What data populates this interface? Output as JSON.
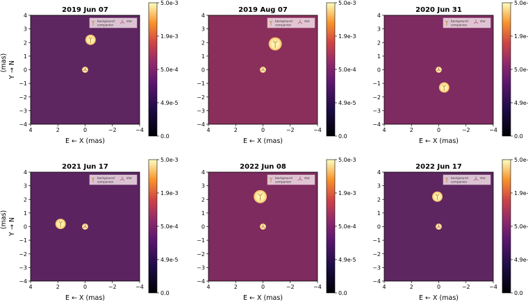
{
  "chart_data": [
    {
      "type": "heatmap",
      "title": "2019 Jun 07",
      "xlabel": "E ← X (mas)",
      "ylabel": "Y → N",
      "ylabel_unit": "(mas)",
      "xlim": [
        4,
        -4
      ],
      "ylim": [
        -4,
        4
      ],
      "x_ticks": [
        "4",
        "2",
        "0",
        "−2",
        "−4"
      ],
      "y_ticks": [
        "4",
        "3",
        "2",
        "1",
        "0",
        "−1",
        "−2",
        "−3",
        "−4"
      ],
      "background_color": "#5e2660",
      "legend": [
        "background companion",
        "star"
      ],
      "legend_position": "top-right",
      "colorbar": {
        "labels": [
          "5.0e-3",
          "1.9e-3",
          "5.0e-4",
          "4.9e-5",
          "0.0"
        ]
      },
      "sources": [
        {
          "x": 0.0,
          "y": 0.0,
          "size": "small"
        },
        {
          "x": -0.4,
          "y": 2.2,
          "size": "medium"
        }
      ]
    },
    {
      "type": "heatmap",
      "title": "2019 Aug 07",
      "xlabel": "E ← X (mas)",
      "ylabel": "",
      "ylabel_unit": "",
      "xlim": [
        4,
        -4
      ],
      "ylim": [
        -4,
        4
      ],
      "x_ticks": [
        "4",
        "2",
        "0",
        "−2",
        "−4"
      ],
      "y_ticks": [
        "4",
        "3",
        "2",
        "1",
        "0",
        "−1",
        "−2",
        "−3",
        "−4"
      ],
      "background_color": "#8a2f5c",
      "legend": [
        "background companion",
        "star"
      ],
      "legend_position": "top-right",
      "colorbar": {
        "labels": [
          "5.0e-3",
          "1.9e-3",
          "5.0e-4",
          "4.9e-5",
          "0.0"
        ]
      },
      "sources": [
        {
          "x": 0.0,
          "y": 0.0,
          "size": "small"
        },
        {
          "x": -0.9,
          "y": 1.9,
          "size": "large"
        }
      ]
    },
    {
      "type": "heatmap",
      "title": "2020 Jun 31",
      "xlabel": "E ← X (mas)",
      "ylabel": "",
      "ylabel_unit": "",
      "xlim": [
        4,
        -4
      ],
      "ylim": [
        -4,
        4
      ],
      "x_ticks": [
        "4",
        "2",
        "0",
        "−2",
        "−4"
      ],
      "y_ticks": [
        "4",
        "3",
        "2",
        "1",
        "0",
        "−1",
        "−2",
        "−3",
        "−4"
      ],
      "background_color": "#7d2b60",
      "legend": [
        "background companion",
        "star"
      ],
      "legend_position": "top-right",
      "colorbar": {
        "labels": [
          "5.0e-3",
          "1.9e-3",
          "5.0e-4",
          "4.9e-5",
          "0.0"
        ]
      },
      "sources": [
        {
          "x": 0.0,
          "y": 0.0,
          "size": "small"
        },
        {
          "x": -0.4,
          "y": -1.3,
          "size": "medium"
        }
      ]
    },
    {
      "type": "heatmap",
      "title": "2021 Jun 17",
      "xlabel": "E ← X (mas)",
      "ylabel": "Y → N",
      "ylabel_unit": "(mas)",
      "xlim": [
        4,
        -4
      ],
      "ylim": [
        -4,
        4
      ],
      "x_ticks": [
        "4",
        "2",
        "0",
        "−2",
        "−4"
      ],
      "y_ticks": [
        "4",
        "3",
        "2",
        "1",
        "0",
        "−1",
        "−2",
        "−3",
        "−4"
      ],
      "background_color": "#5b2461",
      "legend": [
        "background companion",
        "star"
      ],
      "legend_position": "top-right",
      "colorbar": {
        "labels": [
          "5.0e-3",
          "1.9e-3",
          "5.0e-4",
          "4.9e-5",
          "0.0"
        ]
      },
      "sources": [
        {
          "x": 0.0,
          "y": 0.0,
          "size": "small"
        },
        {
          "x": 1.8,
          "y": 0.2,
          "size": "medium"
        }
      ]
    },
    {
      "type": "heatmap",
      "title": "2022 Jun 08",
      "xlabel": "E ← X (mas)",
      "ylabel": "",
      "ylabel_unit": "",
      "xlim": [
        4,
        -4
      ],
      "ylim": [
        -4,
        4
      ],
      "x_ticks": [
        "4",
        "2",
        "0",
        "−2",
        "−4"
      ],
      "y_ticks": [
        "4",
        "3",
        "2",
        "1",
        "0",
        "−1",
        "−2",
        "−3",
        "−4"
      ],
      "background_color": "#7e2b5f",
      "legend": [
        "background companion",
        "star"
      ],
      "legend_position": "top-right",
      "colorbar": {
        "labels": [
          "5.0e-3",
          "1.9e-3",
          "5.0e-4",
          "4.9e-5",
          "0.0"
        ]
      },
      "sources": [
        {
          "x": 0.0,
          "y": 0.0,
          "size": "small"
        },
        {
          "x": 0.2,
          "y": 2.2,
          "size": "large"
        }
      ]
    },
    {
      "type": "heatmap",
      "title": "2022 Jun 17",
      "xlabel": "E ← X (mas)",
      "ylabel": "",
      "ylabel_unit": "",
      "xlim": [
        4,
        -4
      ],
      "ylim": [
        -4,
        4
      ],
      "x_ticks": [
        "4",
        "2",
        "0",
        "−2",
        "−4"
      ],
      "y_ticks": [
        "4",
        "3",
        "2",
        "1",
        "0",
        "−1",
        "−2",
        "−3",
        "−4"
      ],
      "background_color": "#5e2660",
      "legend": [
        "background companion",
        "star"
      ],
      "legend_position": "top-right",
      "colorbar": {
        "labels": [
          "5.0e-3",
          "1.9e-3",
          "5.0e-4",
          "4.9e-5",
          "0.0"
        ]
      },
      "sources": [
        {
          "x": 0.0,
          "y": 0.0,
          "size": "small"
        },
        {
          "x": 0.1,
          "y": 2.2,
          "size": "medium"
        }
      ]
    }
  ]
}
